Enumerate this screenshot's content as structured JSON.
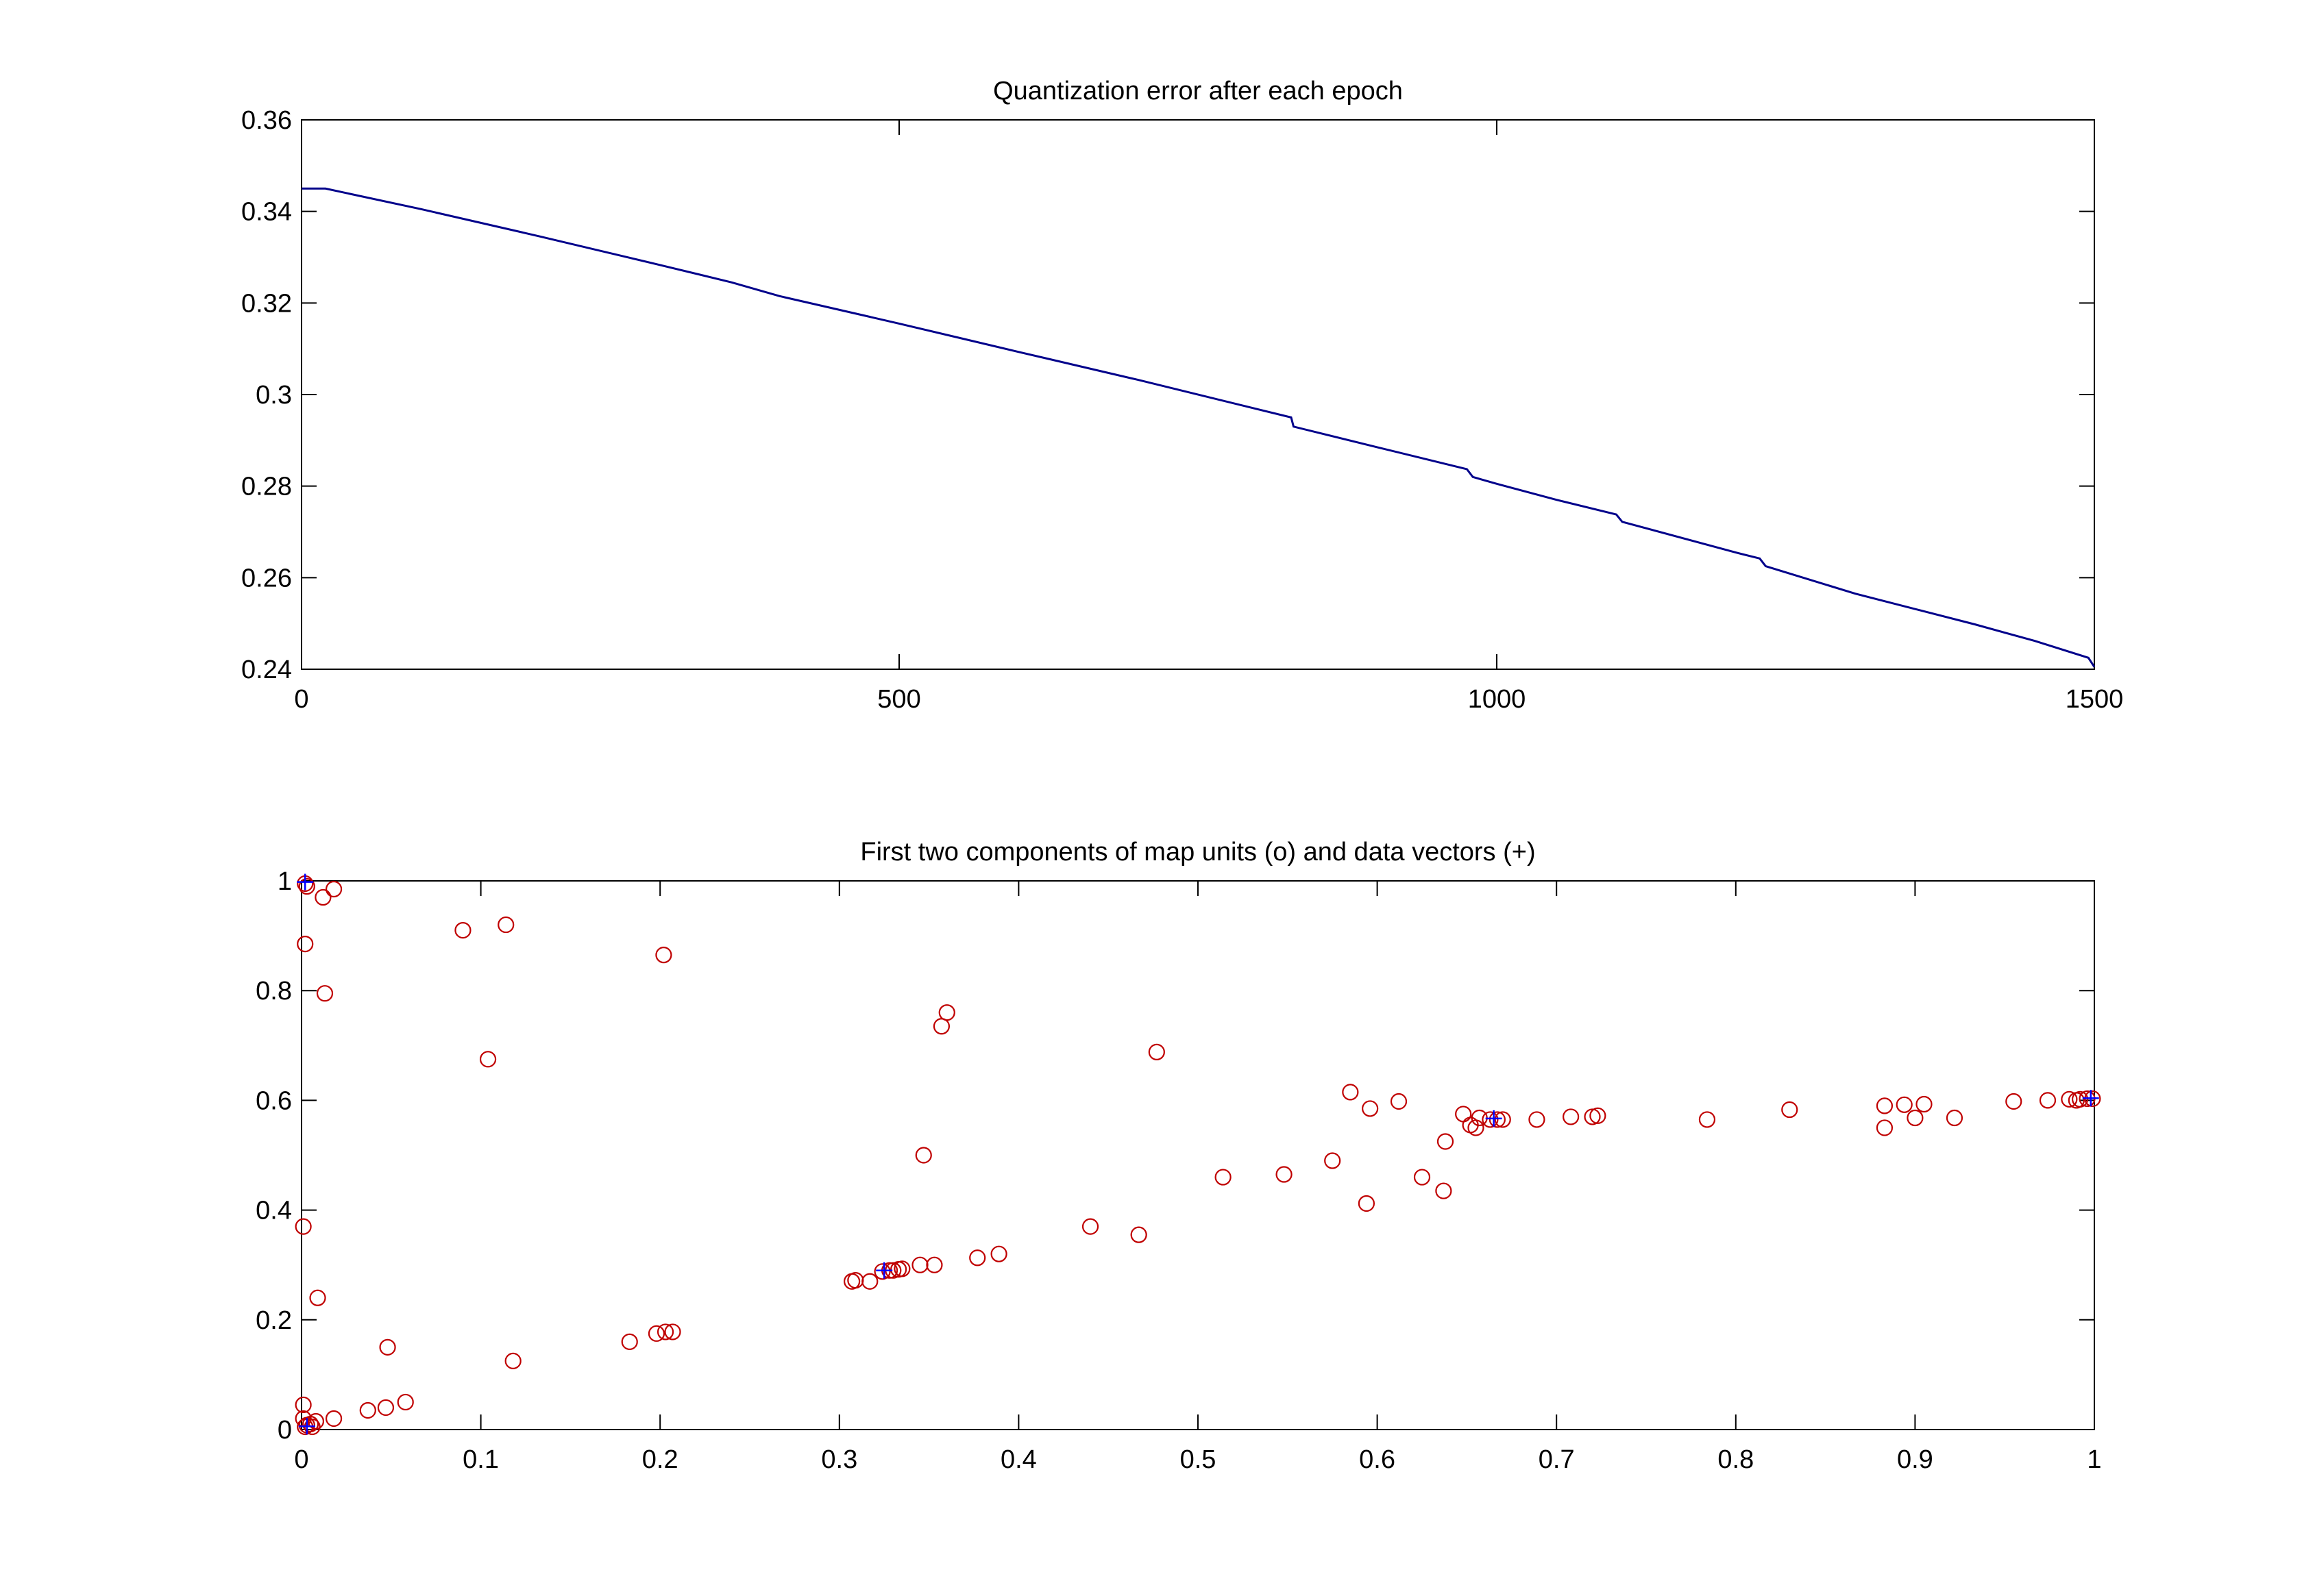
{
  "chart_data": [
    {
      "type": "line",
      "title": "Quantization error after each epoch",
      "xlabel": "",
      "ylabel": "",
      "xlim": [
        0,
        1500
      ],
      "ylim": [
        0.24,
        0.36
      ],
      "xticks": [
        0,
        500,
        1000,
        1500
      ],
      "xtick_labels": [
        "0",
        "500",
        "1000",
        "1500"
      ],
      "yticks": [
        0.24,
        0.26,
        0.28,
        0.3,
        0.32,
        0.34,
        0.36
      ],
      "ytick_labels": [
        "0.24",
        "0.26",
        "0.28",
        "0.3",
        "0.32",
        "0.34",
        "0.36"
      ],
      "grid": false,
      "legend": "none",
      "color": "#00008B",
      "series": [
        {
          "x": [
            0,
            20,
            100,
            200,
            300,
            360,
            400,
            500,
            600,
            700,
            800,
            828,
            830,
            900,
            975,
            980,
            1000,
            1050,
            1100,
            1105,
            1200,
            1220,
            1225,
            1300,
            1400,
            1450,
            1495,
            1500
          ],
          "y": [
            0.345,
            0.345,
            0.3405,
            0.3345,
            0.3283,
            0.3245,
            0.3215,
            0.3155,
            0.3093,
            0.3032,
            0.2968,
            0.295,
            0.293,
            0.2885,
            0.2837,
            0.282,
            0.2805,
            0.277,
            0.2738,
            0.2722,
            0.2655,
            0.2642,
            0.2625,
            0.2565,
            0.2498,
            0.2462,
            0.2425,
            0.2405
          ]
        }
      ]
    },
    {
      "type": "scatter",
      "title": "First two components of map units (o) and data vectors (+)",
      "xlabel": "",
      "ylabel": "",
      "xlim": [
        0,
        1
      ],
      "ylim": [
        0,
        1
      ],
      "xticks": [
        0,
        0.1,
        0.2,
        0.3,
        0.4,
        0.5,
        0.6,
        0.7,
        0.8,
        0.9,
        1
      ],
      "xtick_labels": [
        "0",
        "0.1",
        "0.2",
        "0.3",
        "0.4",
        "0.5",
        "0.6",
        "0.7",
        "0.8",
        "0.9",
        "1"
      ],
      "yticks": [
        0,
        0.2,
        0.4,
        0.6,
        0.8,
        1
      ],
      "ytick_labels": [
        "0",
        "0.2",
        "0.4",
        "0.6",
        "0.8",
        "1"
      ],
      "grid": false,
      "legend": "none",
      "series": [
        {
          "marker": "o",
          "color": "#C00000",
          "points": [
            [
              0.002,
              0.995
            ],
            [
              0.003,
              0.99
            ],
            [
              0.018,
              0.985
            ],
            [
              0.012,
              0.97
            ],
            [
              0.002,
              0.885
            ],
            [
              0.013,
              0.795
            ],
            [
              0.09,
              0.91
            ],
            [
              0.114,
              0.92
            ],
            [
              0.104,
              0.675
            ],
            [
              0.202,
              0.865
            ],
            [
              0.36,
              0.76
            ],
            [
              0.357,
              0.735
            ],
            [
              0.477,
              0.688
            ],
            [
              0.347,
              0.5
            ],
            [
              0.001,
              0.37
            ],
            [
              0.009,
              0.24
            ],
            [
              0.048,
              0.15
            ],
            [
              0.118,
              0.125
            ],
            [
              0.183,
              0.16
            ],
            [
              0.198,
              0.175
            ],
            [
              0.203,
              0.178
            ],
            [
              0.207,
              0.178
            ],
            [
              0.037,
              0.035
            ],
            [
              0.047,
              0.04
            ],
            [
              0.058,
              0.05
            ],
            [
              0.018,
              0.02
            ],
            [
              0.008,
              0.015
            ],
            [
              0.005,
              0.01
            ],
            [
              0.002,
              0.005
            ],
            [
              0.003,
              0.008
            ],
            [
              0.001,
              0.02
            ],
            [
              0.001,
              0.045
            ],
            [
              0.006,
              0.005
            ],
            [
              0.307,
              0.27
            ],
            [
              0.309,
              0.272
            ],
            [
              0.317,
              0.27
            ],
            [
              0.324,
              0.288
            ],
            [
              0.328,
              0.29
            ],
            [
              0.33,
              0.29
            ],
            [
              0.333,
              0.292
            ],
            [
              0.335,
              0.293
            ],
            [
              0.345,
              0.3
            ],
            [
              0.353,
              0.3
            ],
            [
              0.377,
              0.313
            ],
            [
              0.389,
              0.32
            ],
            [
              0.44,
              0.37
            ],
            [
              0.467,
              0.355
            ],
            [
              0.514,
              0.46
            ],
            [
              0.548,
              0.465
            ],
            [
              0.575,
              0.49
            ],
            [
              0.585,
              0.615
            ],
            [
              0.596,
              0.585
            ],
            [
              0.612,
              0.598
            ],
            [
              0.594,
              0.412
            ],
            [
              0.625,
              0.46
            ],
            [
              0.637,
              0.435
            ],
            [
              0.638,
              0.525
            ],
            [
              0.648,
              0.575
            ],
            [
              0.652,
              0.555
            ],
            [
              0.655,
              0.55
            ],
            [
              0.657,
              0.568
            ],
            [
              0.663,
              0.565
            ],
            [
              0.667,
              0.565
            ],
            [
              0.67,
              0.565
            ],
            [
              0.689,
              0.565
            ],
            [
              0.708,
              0.57
            ],
            [
              0.72,
              0.57
            ],
            [
              0.723,
              0.572
            ],
            [
              0.784,
              0.565
            ],
            [
              0.83,
              0.583
            ],
            [
              0.883,
              0.59
            ],
            [
              0.883,
              0.55
            ],
            [
              0.894,
              0.592
            ],
            [
              0.9,
              0.568
            ],
            [
              0.905,
              0.593
            ],
            [
              0.922,
              0.568
            ],
            [
              0.955,
              0.598
            ],
            [
              0.974,
              0.6
            ],
            [
              0.986,
              0.602
            ],
            [
              0.99,
              0.6
            ],
            [
              0.992,
              0.602
            ],
            [
              0.996,
              0.603
            ],
            [
              0.999,
              0.603
            ]
          ]
        },
        {
          "marker": "+",
          "color": "#0000FF",
          "points": [
            [
              0.002,
              0.998
            ],
            [
              0.325,
              0.29
            ],
            [
              0.665,
              0.567
            ],
            [
              0.998,
              0.604
            ],
            [
              0.003,
              0.006
            ]
          ]
        }
      ]
    }
  ]
}
